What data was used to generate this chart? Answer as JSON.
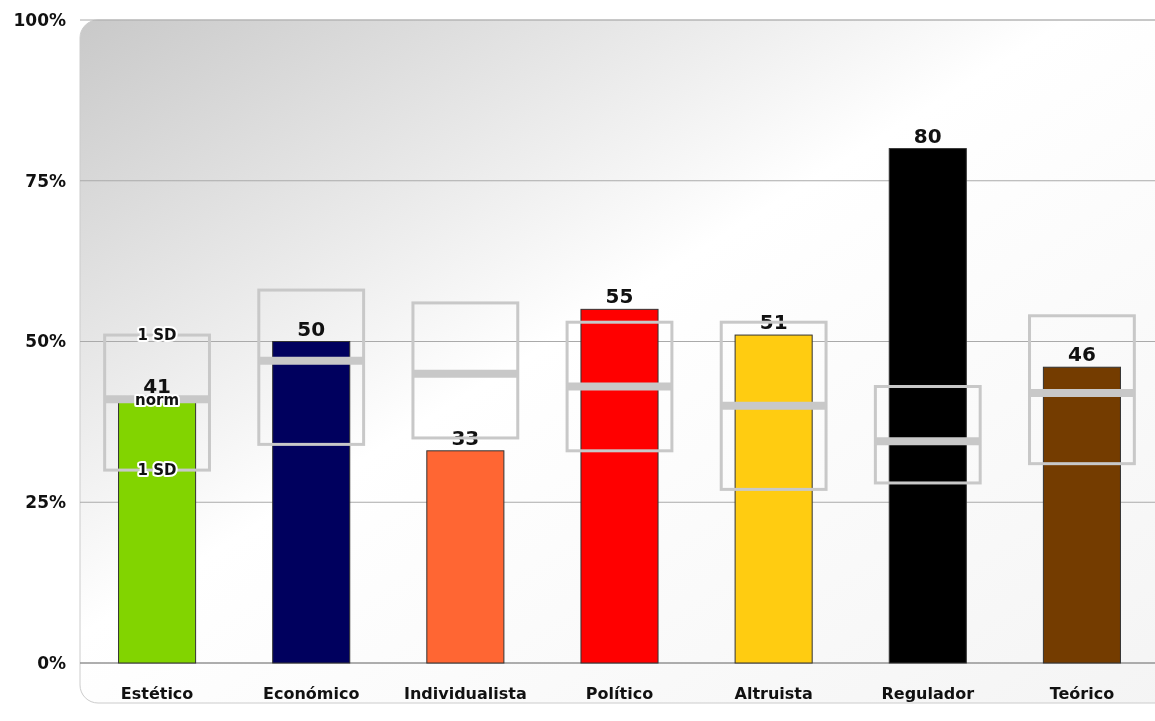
{
  "chart_data": {
    "type": "bar",
    "categories": [
      "Estético",
      "Económico",
      "Individualista",
      "Político",
      "Altruista",
      "Regulador",
      "Teórico"
    ],
    "series": [
      {
        "colors": [
          "#82d400",
          "#00005e",
          "#ff6633",
          "#ff0000",
          "#ffcc11",
          "#000000",
          "#743c00"
        ],
        "values": [
          41,
          50,
          33,
          55,
          51,
          80,
          46
        ]
      },
      {
        "type": "box",
        "color": "#c8c8c8",
        "boxes": [
          {
            "low": 30,
            "q1": 30,
            "median": 41,
            "q3": 51,
            "high": 51
          },
          {
            "low": 34,
            "q1": 34,
            "median": 47,
            "q3": 58,
            "high": 58
          },
          {
            "low": 35,
            "q1": 35,
            "median": 45,
            "q3": 56,
            "high": 56
          },
          {
            "low": 33,
            "q1": 33,
            "median": 43,
            "q3": 53,
            "high": 53
          },
          {
            "low": 27,
            "q1": 27,
            "median": 40,
            "q3": 53,
            "high": 53
          },
          {
            "low": 28,
            "q1": 28,
            "median": 34.5,
            "q3": 43,
            "high": 43
          },
          {
            "low": 31,
            "q1": 31,
            "median": 42,
            "q3": 54,
            "high": 54
          }
        ]
      }
    ],
    "data_labels": true,
    "ylim": [
      0,
      100
    ],
    "yticks": [
      {
        "value": 0,
        "label": "0%"
      },
      {
        "value": 25,
        "label": "25%"
      },
      {
        "value": 50,
        "label": "50%"
      },
      {
        "value": 75,
        "label": "75%"
      },
      {
        "value": 100,
        "label": "100%"
      }
    ],
    "grid": "y",
    "annotations": [
      {
        "text": "1 SD",
        "x": "Estético",
        "y": 51
      },
      {
        "text": "norm",
        "x": "Estético",
        "y": 41
      },
      {
        "text": "1 SD",
        "x": "Estético",
        "y": 30
      }
    ]
  }
}
